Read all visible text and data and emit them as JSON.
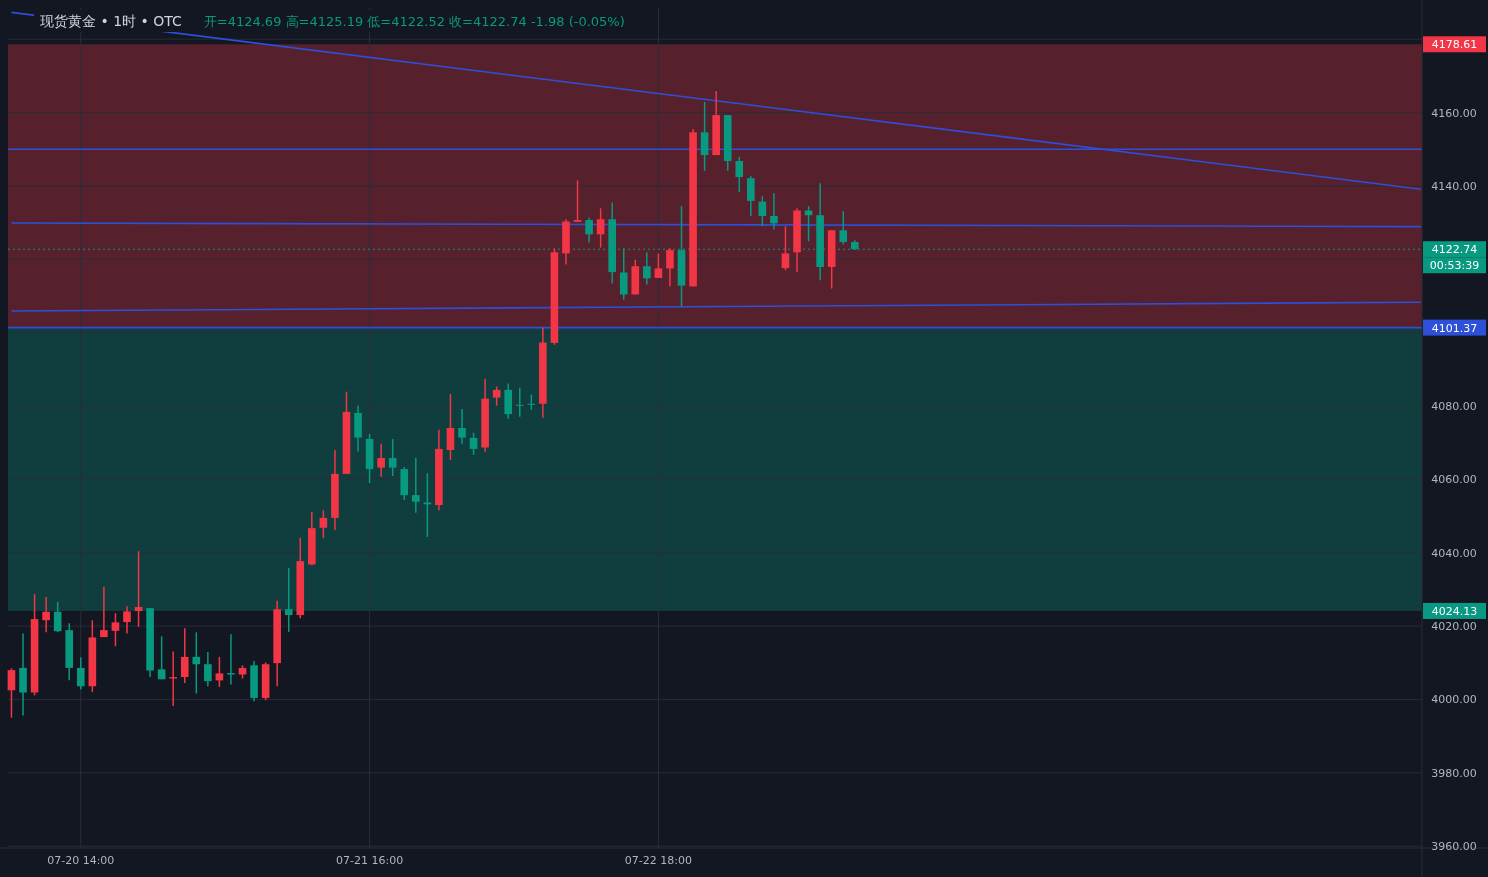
{
  "chart_data": {
    "type": "candlestick",
    "title": "现货黄金 • 1时 • OTC",
    "subtitle": "开=4124.69 高=4125.19 低=4122.52 收=4122.74 -1.98 (-0.05%)",
    "categories": [
      null,
      null,
      null,
      null,
      null,
      null,
      "07-20 14:00",
      null,
      null,
      null,
      null,
      null,
      null,
      null,
      null,
      null,
      null,
      null,
      null,
      null,
      null,
      null,
      null,
      null,
      null,
      null,
      null,
      null,
      null,
      null,
      null,
      "07-21 16:00",
      null,
      null,
      null,
      null,
      null,
      null,
      null,
      null,
      null,
      null,
      null,
      null,
      null,
      null,
      null,
      null,
      null,
      null,
      null,
      null,
      null,
      null,
      null,
      null,
      "07-22 18:00",
      null,
      null,
      null,
      null,
      null,
      null,
      null,
      null,
      null,
      null,
      null,
      null,
      null,
      null,
      null,
      null,
      null,
      null,
      null,
      null,
      null,
      null,
      null,
      null,
      null,
      null,
      null,
      null,
      null,
      null,
      null,
      null,
      null,
      null,
      null,
      null,
      null,
      null,
      null,
      null,
      null,
      null,
      null,
      null,
      null,
      null,
      null,
      null,
      null,
      null,
      null,
      null,
      null,
      null,
      null,
      null,
      null,
      null,
      null,
      null,
      null,
      null,
      null,
      null,
      null,
      null
    ],
    "ohlc": [
      [
        4002.5,
        4008.5,
        3995,
        4008
      ],
      [
        4008.6,
        4018.0,
        3995.6,
        4001.9
      ],
      [
        4001.9,
        4028.7,
        4001.1,
        4021.9
      ],
      [
        4021.6,
        4027.9,
        4018.3,
        4023.9
      ],
      [
        4023.9,
        4026.6,
        4018.4,
        4018.6
      ],
      [
        4018.9,
        4020.8,
        4005.2,
        4008.6
      ],
      [
        4008.6,
        4011.5,
        4002.7,
        4003.6
      ],
      [
        4003.6,
        4021.6,
        4002.0,
        4016.9
      ],
      [
        4017.0,
        4030.7,
        4017.0,
        4018.9
      ],
      [
        4018.7,
        4023.5,
        4014.5,
        4021.0
      ],
      [
        4021.1,
        4025.4,
        4018.0,
        4024.0
      ],
      [
        4024.1,
        4040.4,
        4019.8,
        4025.2
      ],
      [
        4024.9,
        4024.9,
        4006.1,
        4007.9
      ],
      [
        4008.2,
        4017.2,
        4005.5,
        4005.5
      ],
      [
        4005.7,
        4013.1,
        3998.2,
        4006.1
      ],
      [
        4006.1,
        4019.4,
        4004.5,
        4011.6
      ],
      [
        4011.6,
        4018.3,
        4001.6,
        4009.6
      ],
      [
        4009.6,
        4012.9,
        4003.6,
        4005.0
      ],
      [
        4005.2,
        4011.6,
        4003.4,
        4007.1
      ],
      [
        4007.2,
        4017.8,
        4004.1,
        4006.8
      ],
      [
        4006.8,
        4009.3,
        4005.7,
        4008.6
      ],
      [
        4009.3,
        4010.5,
        3999.5,
        4000.4
      ],
      [
        4000.4,
        4010.1,
        3999.8,
        4009.6
      ],
      [
        4009.9,
        4026.9,
        4003.6,
        4024.6
      ],
      [
        4024.6,
        4035.8,
        4018.4,
        4023.0
      ],
      [
        4023.0,
        4044.1,
        4022.1,
        4037.7
      ],
      [
        4036.8,
        4051.1,
        4036.6,
        4046.7
      ],
      [
        4046.8,
        4051.6,
        4044.0,
        4049.5
      ],
      [
        4049.5,
        4068.0,
        4046.2,
        4061.5
      ],
      [
        4061.5,
        4083.9,
        4061.5,
        4078.4
      ],
      [
        4078.1,
        4080.1,
        4067.6,
        4071.4
      ],
      [
        4071.0,
        4072.4,
        4059.0,
        4062.8
      ],
      [
        4063.2,
        4069.7,
        4060.7,
        4065.8
      ],
      [
        4065.8,
        4071.0,
        4060.9,
        4063.2
      ],
      [
        4062.8,
        4063.4,
        4054.4,
        4055.7
      ],
      [
        4055.7,
        4065.9,
        4050.9,
        4053.9
      ],
      [
        4053.7,
        4061.7,
        4044.3,
        4053.2
      ],
      [
        4053.0,
        4073.5,
        4051.6,
        4068.3
      ],
      [
        4068.0,
        4083.3,
        4065.3,
        4074.0
      ],
      [
        4074.0,
        4079.2,
        4069.7,
        4071.4
      ],
      [
        4071.3,
        4072.7,
        4066.7,
        4068.3
      ],
      [
        4068.7,
        4087.4,
        4067.5,
        4082.0
      ],
      [
        4082.3,
        4085.3,
        4080.1,
        4084.4
      ],
      [
        4084.4,
        4086.1,
        4076.5,
        4077.8
      ],
      [
        4080.3,
        4085.0,
        4077.1,
        4080.1
      ],
      [
        4080.6,
        4083.1,
        4079.0,
        4080.4
      ],
      [
        4080.6,
        4101.4,
        4076.8,
        4097.3
      ],
      [
        4097.2,
        4122.9,
        4096.7,
        4121.9
      ],
      [
        4121.6,
        4130.9,
        4118.6,
        4130.3
      ],
      [
        4130.2,
        4141.5,
        4130.2,
        4130.7
      ],
      [
        4130.7,
        4131.4,
        4124.6,
        4126.8
      ],
      [
        4126.8,
        4133.9,
        4123.2,
        4130.9
      ],
      [
        4130.9,
        4135.5,
        4113.4,
        4116.5
      ],
      [
        4116.4,
        4123.0,
        4109.0,
        4110.4
      ],
      [
        4110.4,
        4119.9,
        4110.4,
        4118.1
      ],
      [
        4118.1,
        4121.9,
        4113.1,
        4114.8
      ],
      [
        4114.9,
        4121.6,
        4114.9,
        4117.5
      ],
      [
        4117.5,
        4123.0,
        4112.6,
        4122.5
      ],
      [
        4122.5,
        4134.5,
        4107.2,
        4112.8
      ],
      [
        4112.6,
        4155.5,
        4112.6,
        4154.6
      ],
      [
        4154.6,
        4162.9,
        4144.1,
        4148.4
      ],
      [
        4148.4,
        4165.9,
        4148.4,
        4159.3
      ],
      [
        4159.3,
        4159.3,
        4144.1,
        4146.8
      ],
      [
        4146.8,
        4147.9,
        4138.3,
        4142.4
      ],
      [
        4142.1,
        4142.7,
        4131.8,
        4135.9
      ],
      [
        4135.7,
        4137.2,
        4129.0,
        4131.8
      ],
      [
        4131.8,
        4138.0,
        4128.1,
        4129.8
      ],
      [
        4117.6,
        4129.0,
        4117.0,
        4121.6
      ],
      [
        4121.9,
        4133.9,
        4116.5,
        4133.3
      ],
      [
        4133.3,
        4134.5,
        4124.9,
        4132.0
      ],
      [
        4132.0,
        4140.7,
        4114.3,
        4117.9
      ],
      [
        4117.9,
        4128.0,
        4112.0,
        4127.9
      ],
      [
        4127.9,
        4133.1,
        4124.0,
        4124.7
      ],
      [
        4124.69,
        4125.19,
        4122.52,
        4122.74
      ],
      null,
      null,
      null,
      null,
      null,
      null,
      null,
      null,
      null,
      null,
      null,
      null,
      null,
      null,
      null,
      null,
      null,
      null,
      null,
      null,
      null,
      null,
      null,
      null,
      null,
      null,
      null,
      null,
      null,
      null,
      null,
      null,
      null,
      null,
      null,
      null,
      null,
      null,
      null,
      null,
      null,
      null,
      null,
      null,
      null,
      null,
      null,
      null,
      null
    ],
    "series": [
      {
        "type": "line",
        "color": "#2e4fd8",
        "values": [
          4187.3,
          null,
          null,
          null,
          null,
          null,
          null,
          null,
          null,
          null,
          null,
          null,
          null,
          null,
          null,
          null,
          null,
          null,
          null,
          null,
          null,
          null,
          null,
          null,
          null,
          null,
          null,
          null,
          null,
          null,
          null,
          null,
          null,
          null,
          null,
          null,
          null,
          null,
          null,
          null,
          null,
          null,
          null,
          null,
          null,
          null,
          null,
          null,
          null,
          null,
          null,
          null,
          null,
          null,
          null,
          null,
          null,
          null,
          null,
          null,
          null,
          null,
          null,
          null,
          null,
          null,
          null,
          null,
          null,
          null,
          null,
          null,
          null,
          null,
          null,
          null,
          null,
          null,
          null,
          null,
          null,
          null,
          null,
          null,
          null,
          null,
          null,
          null,
          null,
          null,
          null,
          null,
          null,
          null,
          null,
          null,
          null,
          null,
          null,
          null,
          null,
          null,
          null,
          null,
          null,
          null,
          null,
          null,
          null,
          null,
          null,
          null,
          null,
          null,
          null,
          null,
          null,
          null,
          null,
          null,
          null,
          null,
          4139.1
        ]
      },
      {
        "type": "line",
        "color": "#2e4fd8",
        "values": [
          4129.9,
          null,
          null,
          null,
          null,
          null,
          null,
          null,
          null,
          null,
          null,
          null,
          null,
          null,
          null,
          null,
          null,
          null,
          null,
          null,
          null,
          null,
          null,
          null,
          null,
          null,
          null,
          null,
          null,
          null,
          null,
          null,
          null,
          null,
          null,
          null,
          null,
          null,
          null,
          null,
          null,
          null,
          null,
          null,
          null,
          null,
          null,
          null,
          null,
          null,
          null,
          null,
          null,
          null,
          null,
          null,
          null,
          null,
          null,
          null,
          null,
          null,
          null,
          null,
          null,
          null,
          null,
          null,
          null,
          null,
          null,
          null,
          null,
          null,
          null,
          null,
          null,
          null,
          null,
          null,
          null,
          null,
          null,
          null,
          null,
          null,
          null,
          null,
          null,
          null,
          null,
          null,
          null,
          null,
          null,
          null,
          null,
          null,
          null,
          null,
          null,
          null,
          null,
          null,
          null,
          null,
          null,
          null,
          null,
          null,
          null,
          null,
          null,
          null,
          null,
          null,
          null,
          null,
          null,
          null,
          null,
          null,
          4128.9
        ]
      },
      {
        "type": "line",
        "color": "#2e4fd8",
        "values": [
          4105.9,
          null,
          null,
          null,
          null,
          null,
          null,
          null,
          null,
          null,
          null,
          null,
          null,
          null,
          null,
          null,
          null,
          null,
          null,
          null,
          null,
          null,
          null,
          null,
          null,
          null,
          null,
          null,
          null,
          null,
          null,
          null,
          null,
          null,
          null,
          null,
          null,
          null,
          null,
          null,
          null,
          null,
          null,
          null,
          null,
          null,
          null,
          null,
          null,
          null,
          null,
          null,
          null,
          null,
          null,
          null,
          null,
          null,
          null,
          null,
          null,
          null,
          null,
          null,
          null,
          null,
          null,
          null,
          null,
          null,
          null,
          null,
          null,
          null,
          null,
          null,
          null,
          null,
          null,
          null,
          null,
          null,
          null,
          null,
          null,
          null,
          null,
          null,
          null,
          null,
          null,
          null,
          null,
          null,
          null,
          null,
          null,
          null,
          null,
          null,
          null,
          null,
          null,
          null,
          null,
          null,
          null,
          null,
          null,
          null,
          null,
          null,
          null,
          null,
          null,
          null,
          null,
          null,
          null,
          null,
          null,
          null,
          4108.3
        ]
      }
    ],
    "bands": [
      {
        "axis": "y",
        "from": 4101.37,
        "to": 4178.61,
        "label": "4178.61",
        "color": "#56202d"
      },
      {
        "axis": "y",
        "from": 4024.13,
        "to": 4101.37,
        "label": "4024.13",
        "color": "#103e3f"
      }
    ],
    "ref_lines": [
      {
        "axis": "y",
        "value": 4150,
        "color": "#2e4fd8"
      },
      {
        "axis": "y",
        "value": 4101.37,
        "label": "4101.37",
        "color": "#2e4fd8"
      },
      {
        "axis": "y",
        "value": 4122.74,
        "label": "4122.74",
        "color": "#089981",
        "line_style": "dotted"
      }
    ],
    "annotations": [
      "00:53:39"
    ],
    "ylim": [
      3959.5,
      4188.5
    ],
    "yticks": [
      {
        "value": 3960,
        "label": "3960.00"
      },
      {
        "value": 3980,
        "label": "3980.00"
      },
      {
        "value": 4000,
        "label": "4000.00"
      },
      {
        "value": 4020,
        "label": "4020.00"
      },
      {
        "value": 4040,
        "label": "4040.00"
      },
      {
        "value": 4060,
        "label": "4060.00"
      },
      {
        "value": 4080,
        "label": "4080.00"
      },
      {
        "value": 4100,
        "label": null
      },
      {
        "value": 4120,
        "label": null
      },
      {
        "value": 4140,
        "label": "4140.00"
      },
      {
        "value": 4160,
        "label": "4160.00"
      },
      {
        "value": 4180,
        "label": null
      }
    ],
    "grid": true
  }
}
